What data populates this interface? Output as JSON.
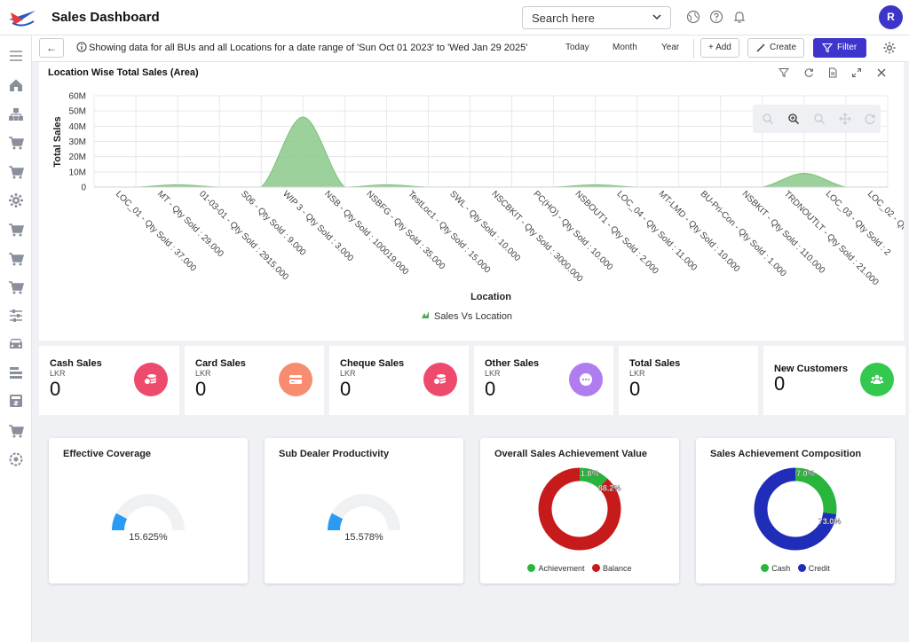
{
  "app": {
    "title": "Sales Dashboard",
    "avatar_initial": "R"
  },
  "search": {
    "placeholder": "Search here"
  },
  "filterbar": {
    "back_label": "←",
    "info": "Showing data for all BUs and all Locations for a date range of 'Sun Oct 01 2023' to 'Wed Jan 29 2025'",
    "periods": [
      "Today",
      "Month",
      "Year"
    ],
    "add_label": "+ Add",
    "create_label": "Create",
    "filter_label": "Filter"
  },
  "sidebar_icons": [
    "menu-icon",
    "home-icon",
    "org-icon",
    "cart-icon",
    "cart-icon",
    "gear-icon",
    "cart-icon",
    "cart-icon",
    "cart-icon",
    "sliders-icon",
    "vehicle-icon",
    "stack-icon",
    "cash-register-icon",
    "cart-icon",
    "settings-flower-icon"
  ],
  "chart": {
    "title": "Location Wise Total Sales (Area)",
    "tools": [
      "funnel-icon",
      "refresh-icon",
      "document-icon",
      "expand-icon",
      "close-icon"
    ],
    "zoom_tools": [
      "zoom-out-icon",
      "zoom-in-icon",
      "zoom-reset-icon",
      "pan-icon",
      "reset-icon"
    ]
  },
  "chart_data": {
    "type": "area",
    "xlabel": "Location",
    "ylabel": "Total Sales",
    "ylim": [
      0,
      60000000
    ],
    "yticks": [
      "0",
      "10M",
      "20M",
      "30M",
      "40M",
      "50M",
      "60M"
    ],
    "grid": true,
    "legend_position": "bottom",
    "series": [
      {
        "name": "Sales Vs Location",
        "color": "#8cc98a",
        "values": [
          0,
          0,
          1500000,
          0,
          0,
          46000000,
          0,
          1500000,
          0,
          0,
          0,
          0,
          1500000,
          0,
          0,
          0,
          0,
          9000000,
          0,
          0
        ]
      }
    ],
    "categories": [
      "LOC_01 - Qty Sold : 37.000",
      "MT - Qty Sold : 29.000",
      "01-03-01 - Qty Sold : 2915.000",
      "S06 - Qty Sold : 9.000",
      "WIP 3 - Qty Sold : 3.000",
      "NSB - Qty Sold : 100019.000",
      "NSBFG - Qty Sold : 35.000",
      "TestLoc1 - Qty Sold : 15.000",
      "SWL - Qty Sold : 10.000",
      "NSCBKIT - Qty Sold : 3000.000",
      "PC(HO) - Qty Sold : 10.000",
      "NSBOUT1 - Qty Sold : 2.000",
      "LOC_04 - Qty Sold : 11.000",
      "MT-LMD - Qty Sold : 10.000",
      "BU-Pri-Con - Qty Sold : 1.000",
      "NSBKIT - Qty Sold : 110.000",
      "TRDNOUTLT - Qty Sold : 21.000",
      "LOC_03 - Qty Sold : 2",
      "LOC_02 - Qt",
      ""
    ]
  },
  "kpis": [
    {
      "title": "Cash Sales",
      "currency": "LKR",
      "value": "0",
      "color": "#ee4a6c",
      "icon": "coins-icon"
    },
    {
      "title": "Card Sales",
      "currency": "LKR",
      "value": "0",
      "color": "#f88c6f",
      "icon": "credit-card-icon"
    },
    {
      "title": "Cheque Sales",
      "currency": "LKR",
      "value": "0",
      "color": "#ee4a6c",
      "icon": "coins-icon"
    },
    {
      "title": "Other Sales",
      "currency": "LKR",
      "value": "0",
      "color": "#b07df0",
      "icon": "more-icon"
    },
    {
      "title": "Total Sales",
      "currency": "LKR",
      "value": "0",
      "color": "",
      "icon": ""
    },
    {
      "title": "New Customers",
      "currency": "",
      "value": "0",
      "color": "#33c94f",
      "icon": "users-icon"
    }
  ],
  "gauges": [
    {
      "title": "Effective Coverage",
      "value_label": "15.625%",
      "value": 0.15625,
      "color": "#2b9af3"
    },
    {
      "title": "Sub Dealer Productivity",
      "value_label": "15.578%",
      "value": 0.15578,
      "color": "#2b9af3"
    }
  ],
  "donuts": [
    {
      "title": "Overall Sales Achievement Value",
      "slices": [
        {
          "name": "Achievement",
          "value": 11.8,
          "label": "11.8%",
          "color": "#27b53b"
        },
        {
          "name": "Balance",
          "value": 88.2,
          "label": "88.2%",
          "color": "#c71b1b"
        }
      ]
    },
    {
      "title": "Sales Achievement Composition",
      "slices": [
        {
          "name": "Cash",
          "value": 27.0,
          "label": "27.0%",
          "color": "#27b53b"
        },
        {
          "name": "Credit",
          "value": 73.0,
          "label": "73.0%",
          "color": "#1f2db8"
        }
      ]
    }
  ]
}
